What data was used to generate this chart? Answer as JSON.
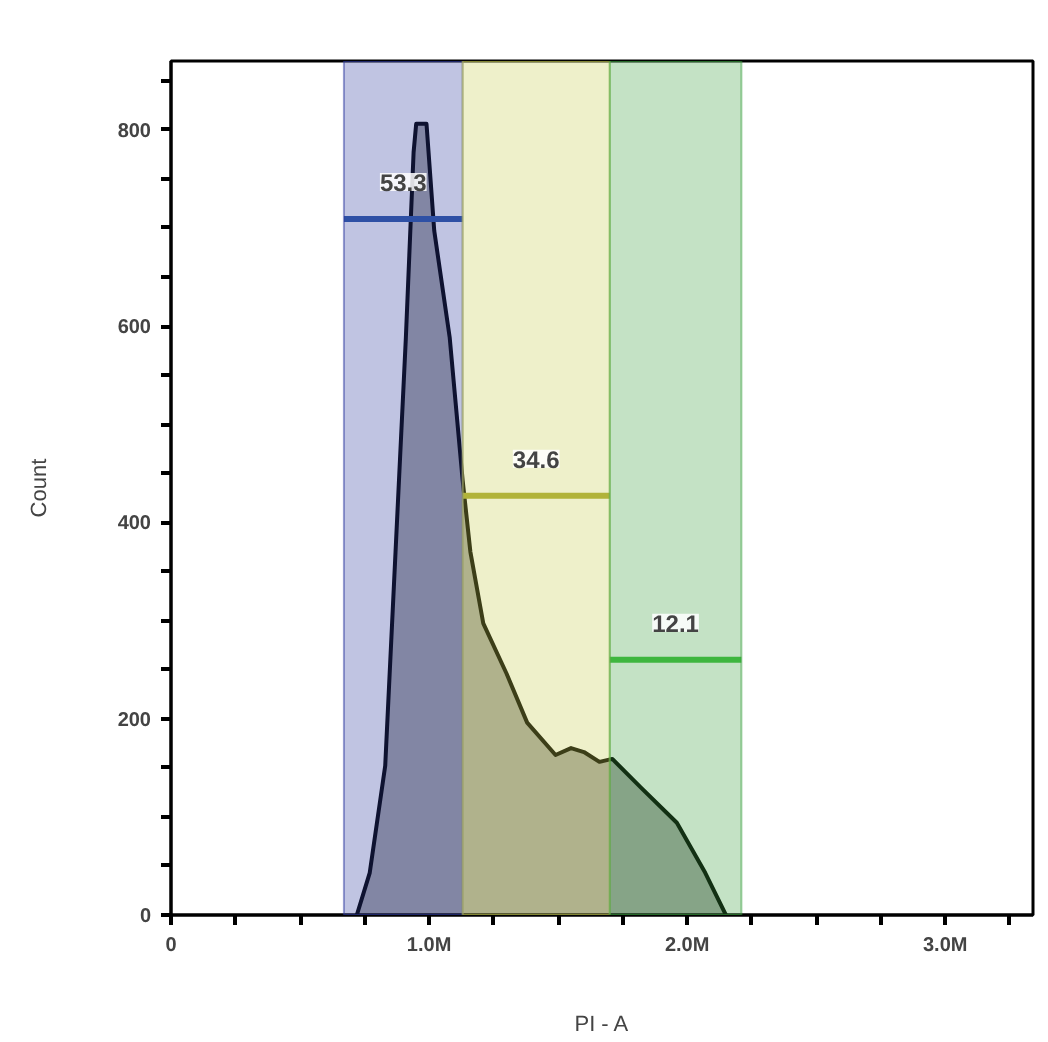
{
  "chart_data": {
    "type": "area",
    "xlabel": "PI - A",
    "ylabel": "Count",
    "x": [
      720000,
      770000,
      830000,
      870000,
      910000,
      940000,
      950000,
      990000,
      1020000,
      1080000,
      1130000,
      1160000,
      1210000,
      1300000,
      1380000,
      1490000,
      1550000,
      1600000,
      1660000,
      1710000,
      1820000,
      1960000,
      2070000,
      2150000
    ],
    "series": [
      {
        "color": "#000000",
        "values": [
          0,
          43,
          152,
          370,
          588,
          777,
          806,
          806,
          697,
          588,
          443,
          370,
          297,
          246,
          196,
          163,
          170,
          166,
          156,
          159,
          130,
          94,
          43,
          0
        ]
      },
      {
        "type": "line",
        "name": "53.3",
        "color": "#2e5aa8",
        "x": [
          670000,
          1130000
        ],
        "values": [
          709,
          709
        ]
      },
      {
        "type": "line",
        "name": "34.6",
        "color": "#a8a830",
        "x": [
          1130000,
          1700000
        ],
        "values": [
          427,
          427
        ]
      },
      {
        "type": "line",
        "name": "12.1",
        "color": "#40c040",
        "x": [
          1700000,
          2210000
        ],
        "values": [
          260,
          260
        ]
      }
    ],
    "xlim": [
      0,
      3340000
    ],
    "ylim": [
      0,
      870
    ],
    "xticks": [
      0,
      {
        "value": 250000,
        "label": null
      },
      {
        "value": 500000,
        "label": null
      },
      {
        "value": 750000,
        "label": null
      },
      {
        "value": 1000000,
        "label": "1.0M"
      },
      {
        "value": 1250000,
        "label": null
      },
      {
        "value": 1500000,
        "label": null
      },
      {
        "value": 1750000,
        "label": null
      },
      {
        "value": 2000000,
        "label": "2.0M"
      },
      {
        "value": 2250000,
        "label": null
      },
      {
        "value": 2500000,
        "label": null
      },
      {
        "value": 2750000,
        "label": null
      },
      {
        "value": 3000000,
        "label": "3.0M"
      },
      {
        "value": 3250000,
        "label": null
      }
    ],
    "yticks": [
      0,
      {
        "value": 50,
        "label": null
      },
      {
        "value": 100,
        "label": null
      },
      {
        "value": 150,
        "label": null
      },
      200,
      {
        "value": 250,
        "label": null
      },
      {
        "value": 300,
        "label": null
      },
      {
        "value": 350,
        "label": null
      },
      400,
      {
        "value": 450,
        "label": null
      },
      {
        "value": 500,
        "label": null
      },
      {
        "value": 550,
        "label": null
      },
      600,
      {
        "value": 650,
        "label": null
      },
      {
        "value": 700,
        "label": null
      },
      {
        "value": 750,
        "label": null
      },
      800,
      {
        "value": 850,
        "label": null
      }
    ],
    "bands": [
      {
        "axis": "x",
        "from": 670000,
        "to": 1130000,
        "color": "#2e3aa0"
      },
      {
        "axis": "x",
        "from": 1130000,
        "to": 1700000,
        "color": "#c8cc50"
      },
      {
        "axis": "x",
        "from": 1700000,
        "to": 2210000,
        "color": "#3aa040"
      }
    ],
    "grid": false
  }
}
